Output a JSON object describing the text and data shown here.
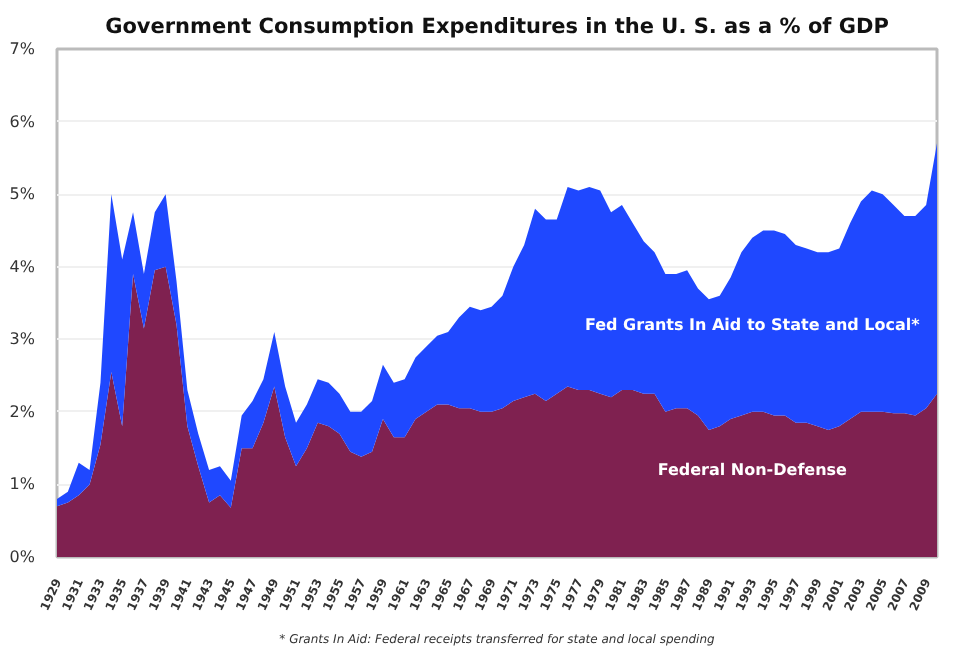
{
  "chart_data": {
    "type": "area",
    "stacked": true,
    "title": "Government Consumption Expenditures in the U. S. as a % of GDP",
    "x": [
      1929,
      1930,
      1931,
      1932,
      1933,
      1934,
      1935,
      1936,
      1937,
      1938,
      1939,
      1940,
      1941,
      1942,
      1943,
      1944,
      1945,
      1946,
      1947,
      1948,
      1949,
      1950,
      1951,
      1952,
      1953,
      1954,
      1955,
      1956,
      1957,
      1958,
      1959,
      1960,
      1961,
      1962,
      1963,
      1964,
      1965,
      1966,
      1967,
      1968,
      1969,
      1970,
      1971,
      1972,
      1973,
      1974,
      1975,
      1976,
      1977,
      1978,
      1979,
      1980,
      1981,
      1982,
      1983,
      1984,
      1985,
      1986,
      1987,
      1988,
      1989,
      1990,
      1991,
      1992,
      1993,
      1994,
      1995,
      1996,
      1997,
      1998,
      1999,
      2000,
      2001,
      2002,
      2003,
      2004,
      2005,
      2006,
      2007,
      2008,
      2009,
      2010
    ],
    "series": [
      {
        "name": "Federal Non-Defense",
        "color": "#7f2150",
        "values": [
          0.7,
          0.75,
          0.85,
          1.0,
          1.55,
          2.55,
          1.8,
          3.9,
          3.15,
          3.95,
          4.0,
          3.2,
          1.8,
          1.25,
          0.75,
          0.85,
          0.68,
          1.5,
          1.5,
          1.85,
          2.35,
          1.65,
          1.25,
          1.5,
          1.85,
          1.8,
          1.7,
          1.45,
          1.38,
          1.45,
          1.9,
          1.65,
          1.65,
          1.9,
          2.0,
          2.1,
          2.1,
          2.05,
          2.05,
          2.0,
          2.0,
          2.05,
          2.15,
          2.2,
          2.25,
          2.15,
          2.25,
          2.35,
          2.3,
          2.3,
          2.25,
          2.2,
          2.3,
          2.3,
          2.25,
          2.25,
          2.0,
          2.05,
          2.05,
          1.95,
          1.75,
          1.8,
          1.9,
          1.95,
          2.0,
          2.0,
          1.95,
          1.95,
          1.85,
          1.85,
          1.8,
          1.75,
          1.8,
          1.9,
          2.0,
          2.0,
          2.0,
          1.98,
          1.98,
          1.95,
          2.05,
          2.25
        ]
      },
      {
        "name": "Fed Grants In Aid to State and Local*",
        "color": "#1f48ff",
        "values": [
          0.1,
          0.15,
          0.45,
          0.2,
          0.85,
          2.45,
          2.3,
          0.85,
          0.75,
          0.8,
          1.0,
          0.6,
          0.5,
          0.45,
          0.45,
          0.4,
          0.37,
          0.45,
          0.65,
          0.6,
          0.75,
          0.7,
          0.6,
          0.6,
          0.6,
          0.6,
          0.55,
          0.55,
          0.62,
          0.7,
          0.75,
          0.75,
          0.8,
          0.85,
          0.9,
          0.95,
          1.0,
          1.25,
          1.4,
          1.4,
          1.45,
          1.55,
          1.85,
          2.1,
          2.55,
          2.5,
          2.4,
          2.75,
          2.75,
          2.8,
          2.8,
          2.55,
          2.55,
          2.3,
          2.1,
          1.95,
          1.9,
          1.85,
          1.9,
          1.75,
          1.8,
          1.8,
          1.95,
          2.25,
          2.4,
          2.5,
          2.55,
          2.5,
          2.45,
          2.4,
          2.4,
          2.45,
          2.45,
          2.7,
          2.9,
          3.05,
          3.0,
          2.87,
          2.72,
          2.75,
          2.8,
          3.45
        ]
      }
    ],
    "xlim": [
      1929,
      2010
    ],
    "xticks": [
      1929,
      1931,
      1933,
      1935,
      1937,
      1939,
      1941,
      1943,
      1945,
      1947,
      1949,
      1951,
      1953,
      1955,
      1957,
      1959,
      1961,
      1963,
      1965,
      1967,
      1969,
      1971,
      1973,
      1975,
      1977,
      1979,
      1981,
      1983,
      1985,
      1987,
      1989,
      1991,
      1993,
      1995,
      1997,
      1999,
      2001,
      2003,
      2005,
      2007,
      2009
    ],
    "ylim": [
      0,
      7
    ],
    "yticks": [
      {
        "value": 0,
        "label": "0%"
      },
      {
        "value": 1,
        "label": "1%"
      },
      {
        "value": 2,
        "label": "2%"
      },
      {
        "value": 3,
        "label": "3%"
      },
      {
        "value": 4,
        "label": "4%"
      },
      {
        "value": 5,
        "label": "5%"
      },
      {
        "value": 6,
        "label": "6%"
      },
      {
        "value": 7,
        "label": "7%"
      }
    ],
    "grid": "y",
    "legend": false,
    "annotations": [
      "* Grants In Aid: Federal receipts transferred for state and local spending"
    ]
  }
}
